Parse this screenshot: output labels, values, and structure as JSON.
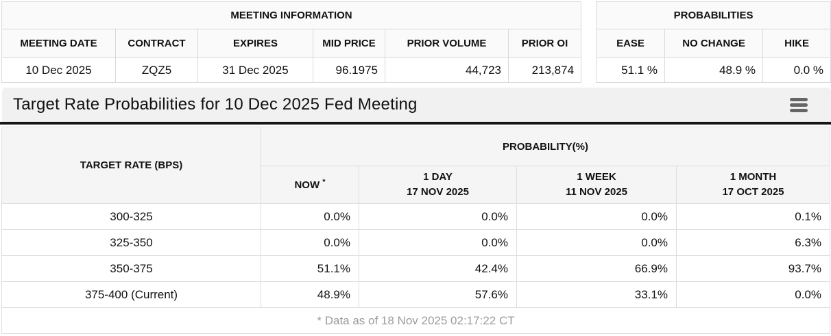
{
  "meeting_info": {
    "title": "MEETING INFORMATION",
    "columns": [
      "MEETING DATE",
      "CONTRACT",
      "EXPIRES",
      "MID PRICE",
      "PRIOR VOLUME",
      "PRIOR OI"
    ],
    "row": {
      "meeting_date": "10 Dec 2025",
      "contract": "ZQZ5",
      "expires": "31 Dec 2025",
      "mid_price": "96.1975",
      "prior_volume": "44,723",
      "prior_oi": "213,874"
    }
  },
  "probabilities": {
    "title": "PROBABILITIES",
    "columns": [
      "EASE",
      "NO CHANGE",
      "HIKE"
    ],
    "row": {
      "ease": "51.1 %",
      "no_change": "48.9 %",
      "hike": "0.0 %"
    }
  },
  "header": {
    "title": "Target Rate Probabilities for 10 Dec 2025 Fed Meeting",
    "menu_icon": "hamburger-menu-icon"
  },
  "main_table": {
    "target_rate_header": "TARGET RATE (BPS)",
    "probability_header": "PROBABILITY(%)",
    "subcols": [
      {
        "label": "NOW",
        "sup": "*",
        "date": ""
      },
      {
        "label": "1 DAY",
        "date": "17 NOV 2025"
      },
      {
        "label": "1 WEEK",
        "date": "11 NOV 2025"
      },
      {
        "label": "1 MONTH",
        "date": "17 OCT 2025"
      }
    ],
    "rows": [
      {
        "target": "300-325",
        "now": "0.0%",
        "day1": "0.0%",
        "week1": "0.0%",
        "month1": "0.1%"
      },
      {
        "target": "325-350",
        "now": "0.0%",
        "day1": "0.0%",
        "week1": "0.0%",
        "month1": "6.3%"
      },
      {
        "target": "350-375",
        "now": "51.1%",
        "day1": "42.4%",
        "week1": "66.9%",
        "month1": "93.7%"
      },
      {
        "target": "375-400 (Current)",
        "now": "48.9%",
        "day1": "57.6%",
        "week1": "33.1%",
        "month1": "0.0%"
      }
    ],
    "footnote": "* Data as of 18 Nov 2025 02:17:22 CT"
  },
  "colors": {
    "now_highlight": "#f8f8d2",
    "titlebar_bg": "#f1f1f1",
    "divider": "#161616",
    "border": "#dddddd",
    "footnote_text": "#9b9b9b",
    "menu_icon": "#666666"
  }
}
